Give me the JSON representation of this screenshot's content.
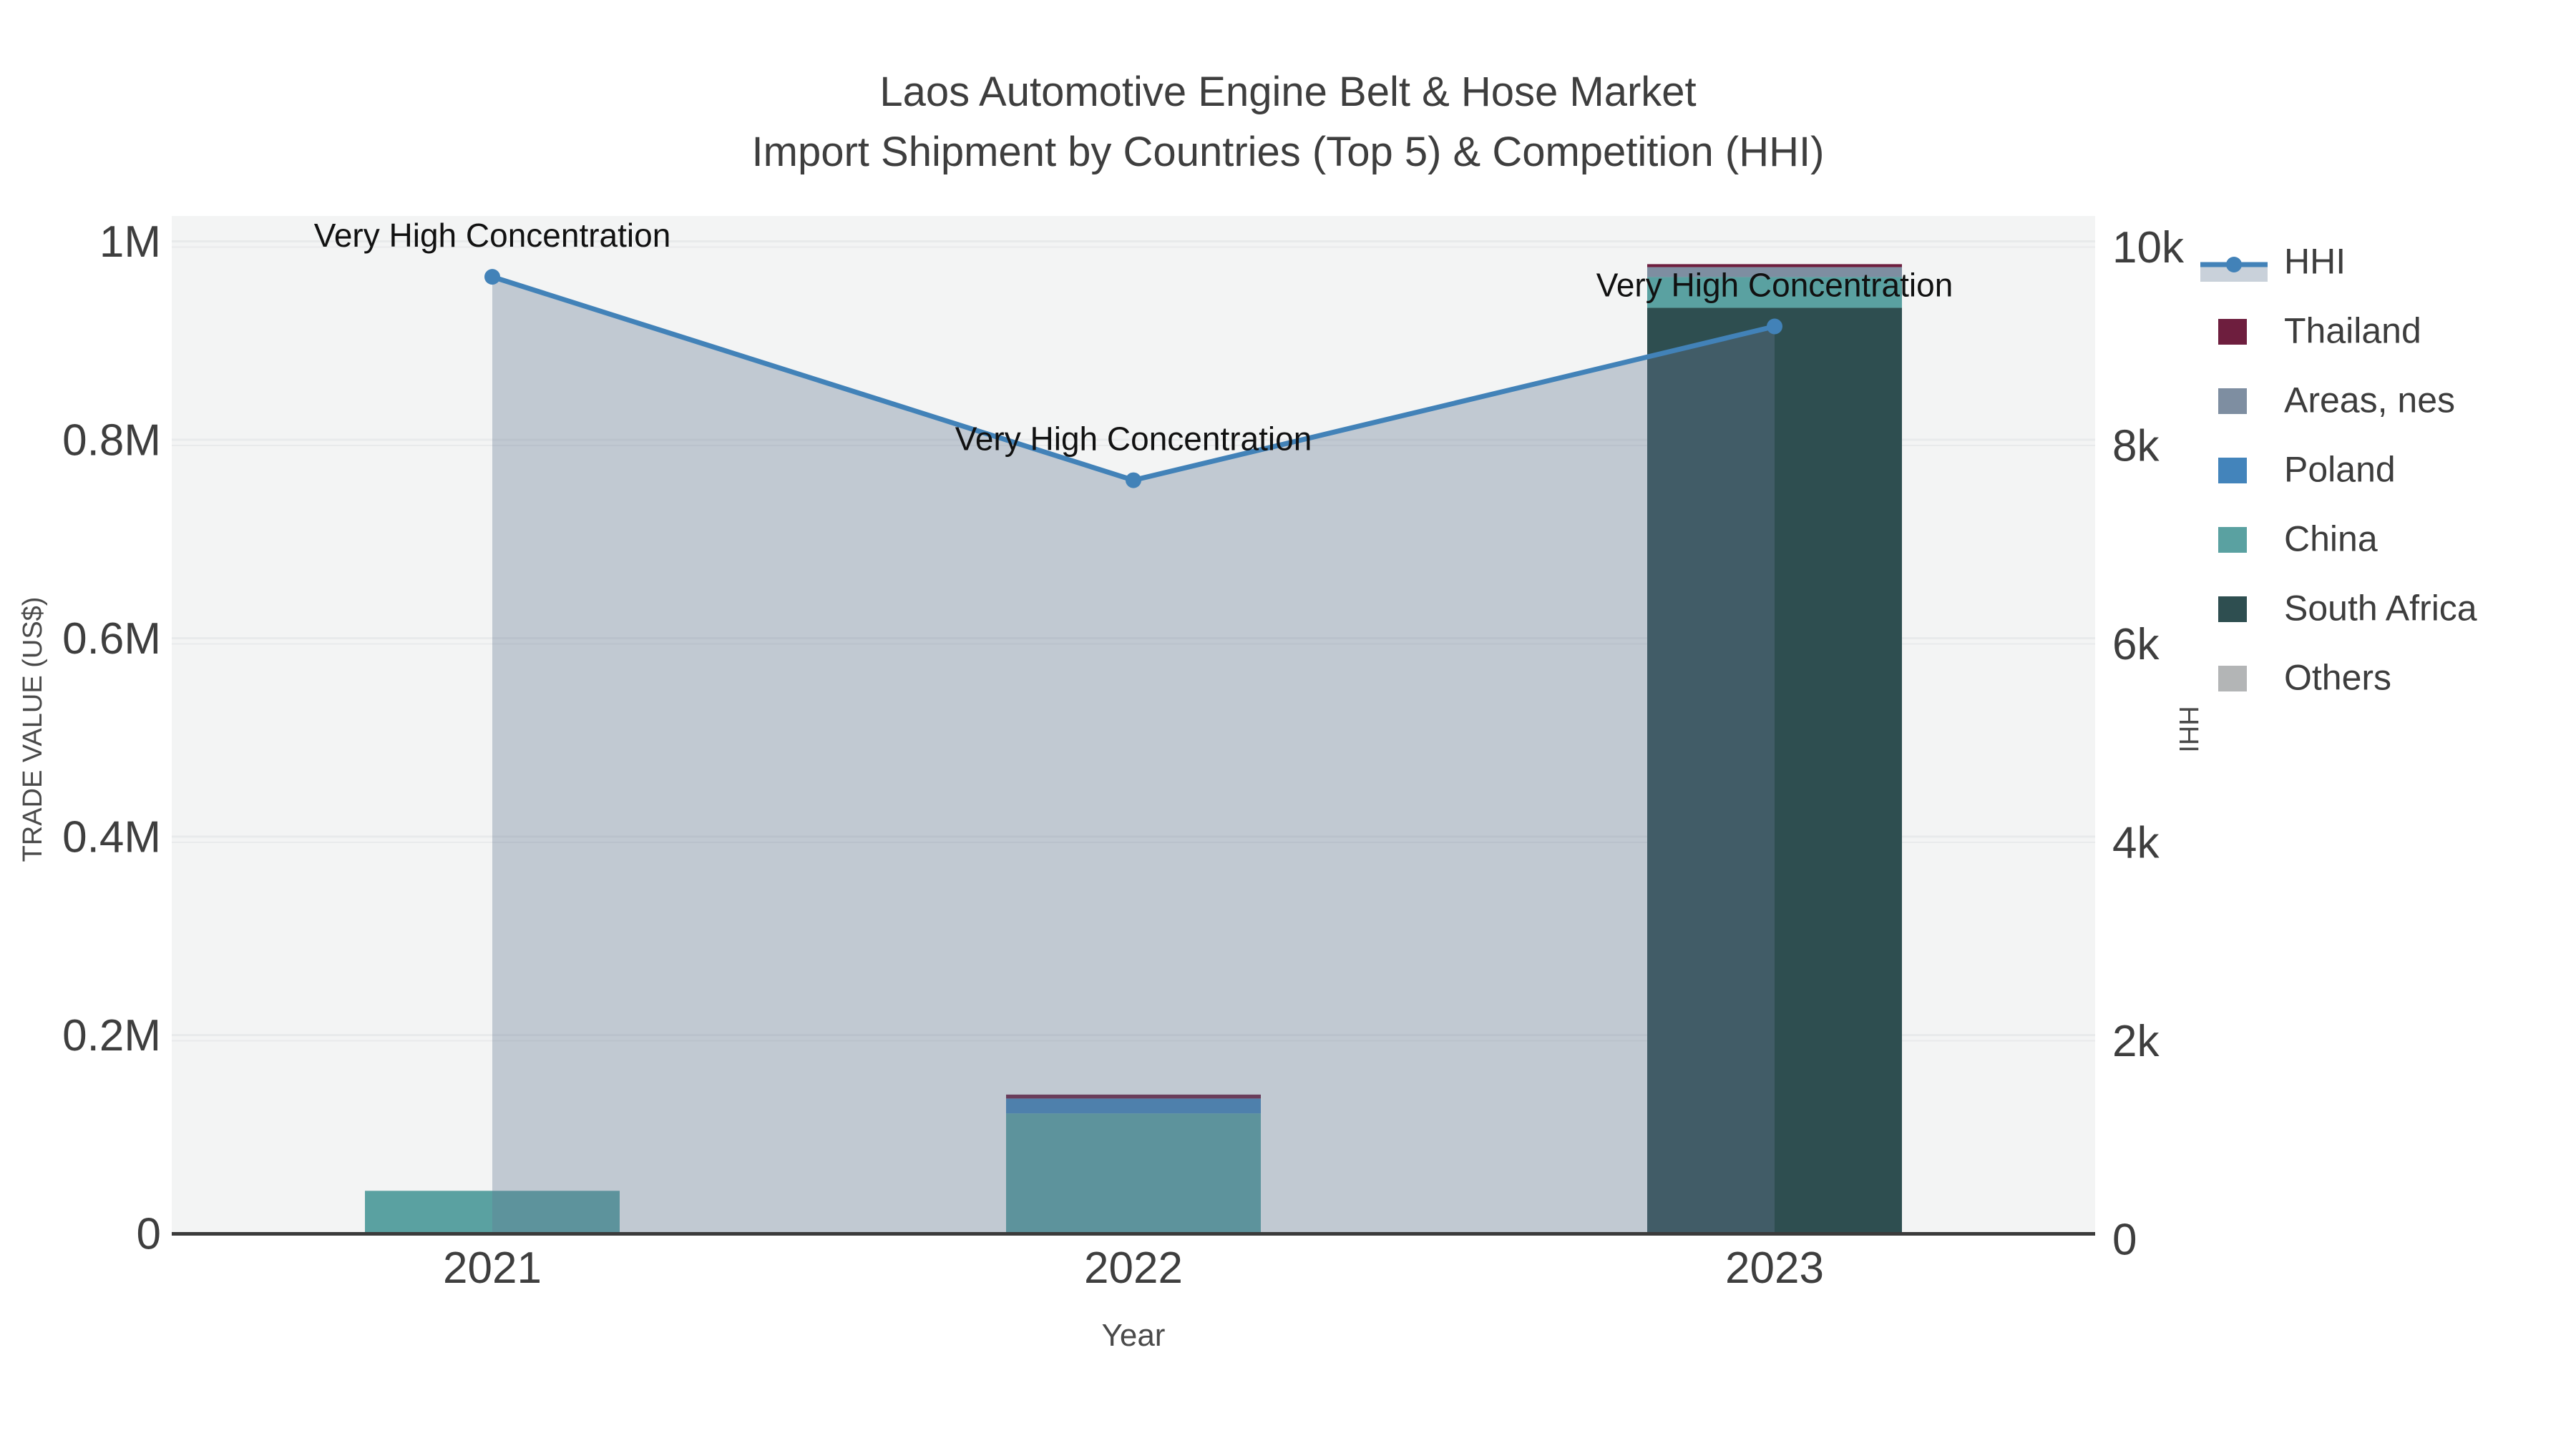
{
  "title": {
    "line1": "Laos Automotive Engine Belt & Hose Market",
    "line2": "Import Shipment by Countries (Top 5) & Competition (HHI)"
  },
  "axes": {
    "x": {
      "title": "Year",
      "categories": [
        "2021",
        "2022",
        "2023"
      ]
    },
    "y_left": {
      "title": "TRADE VALUE (US$)",
      "ticks": [
        "0",
        "0.2M",
        "0.4M",
        "0.6M",
        "0.8M",
        "1M"
      ]
    },
    "y_right": {
      "title": "HHI",
      "ticks": [
        "0",
        "2k",
        "4k",
        "6k",
        "8k",
        "10k"
      ]
    }
  },
  "legend": [
    {
      "label": "HHI",
      "type": "line",
      "color": "#4282b8",
      "band": "#c9d1da"
    },
    {
      "label": "Thailand",
      "type": "swatch",
      "color": "#6e1e3e"
    },
    {
      "label": "Areas, nes",
      "type": "swatch",
      "color": "#7e8ea1"
    },
    {
      "label": "Poland",
      "type": "swatch",
      "color": "#4384bb"
    },
    {
      "label": "China",
      "type": "swatch",
      "color": "#5aa1a1"
    },
    {
      "label": "South Africa",
      "type": "swatch",
      "color": "#2e4e50"
    },
    {
      "label": "Others",
      "type": "swatch",
      "color": "#b3b5b6"
    }
  ],
  "colors": {
    "plot_background": "#f3f4f4",
    "gridline": "#e8eaeb",
    "axis_line": "#3b3b3b",
    "hhi_line": "#4282b8",
    "hhi_fill": "rgba(100,120,145,0.35)"
  },
  "chart_data": {
    "type": "bar+line",
    "title": "Laos Automotive Engine Belt & Hose Market — Import Shipment by Countries (Top 5) & Competition (HHI)",
    "categories": [
      "2021",
      "2022",
      "2023"
    ],
    "xlabel": "Year",
    "ylabel_left": "TRADE VALUE (US$)",
    "ylabel_right": "HHI",
    "ylim_left": [
      0,
      1030000
    ],
    "ylim_right": [
      0,
      10300
    ],
    "grid": true,
    "legend_position": "right",
    "bar_mode": "stack",
    "stack_order_bottom_to_top": [
      "Others",
      "South Africa",
      "China",
      "Poland",
      "Areas, nes",
      "Thailand"
    ],
    "series": [
      {
        "name": "Thailand",
        "axis": "left",
        "color": "#6e1e3e",
        "values": [
          0,
          4000,
          3000
        ]
      },
      {
        "name": "Areas, nes",
        "axis": "left",
        "color": "#7e8ea1",
        "values": [
          0,
          0,
          10000
        ]
      },
      {
        "name": "Poland",
        "axis": "left",
        "color": "#4384bb",
        "values": [
          0,
          15000,
          0
        ]
      },
      {
        "name": "China",
        "axis": "left",
        "color": "#5aa1a1",
        "values": [
          43000,
          121000,
          31000
        ]
      },
      {
        "name": "South Africa",
        "axis": "left",
        "color": "#2e4e50",
        "values": [
          0,
          0,
          933000
        ]
      },
      {
        "name": "Others",
        "axis": "left",
        "color": "#b3b5b6",
        "values": [
          0,
          0,
          0
        ]
      }
    ],
    "hhi": {
      "name": "HHI",
      "axis": "right",
      "type": "area-line-markers",
      "values": [
        9700,
        7650,
        9200
      ],
      "line_color": "#4282b8",
      "fill_color": "rgba(100,120,145,0.35)"
    },
    "annotations": [
      {
        "category": "2021",
        "text": "Very High Concentration"
      },
      {
        "category": "2022",
        "text": "Very High Concentration"
      },
      {
        "category": "2023",
        "text": "Very High Concentration"
      }
    ]
  }
}
